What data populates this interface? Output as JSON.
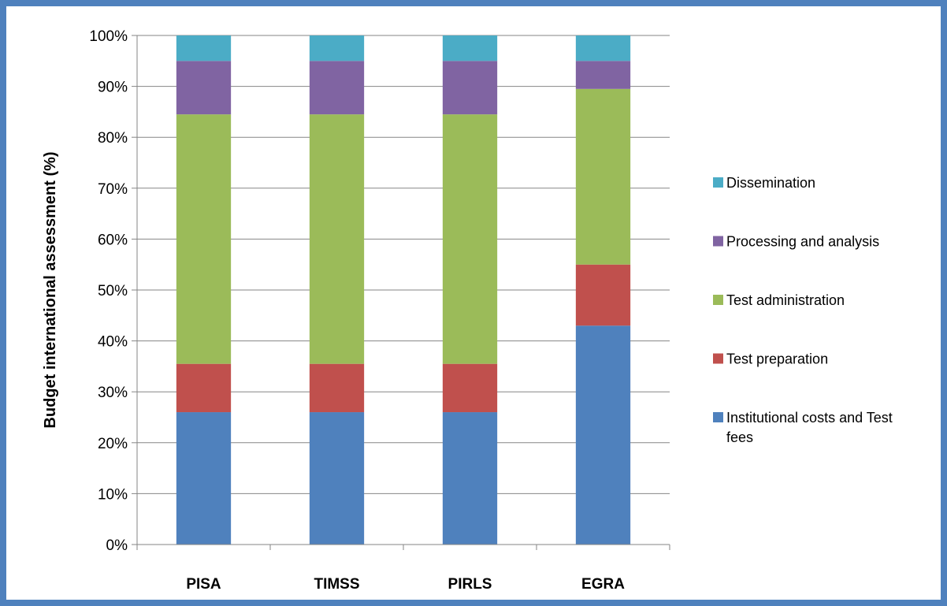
{
  "chart_data": {
    "type": "bar",
    "stacked": true,
    "percent_stacked": true,
    "title": "",
    "xlabel": "",
    "ylabel": "Budget international assessment (%)",
    "ylim": [
      0,
      100
    ],
    "yticks": [
      "0%",
      "10%",
      "20%",
      "30%",
      "40%",
      "50%",
      "60%",
      "70%",
      "80%",
      "90%",
      "100%"
    ],
    "grid": true,
    "legend_position": "right",
    "categories": [
      "PISA",
      "TIMSS",
      "PIRLS",
      "EGRA"
    ],
    "series": [
      {
        "name": "Institutional costs and Test fees",
        "name_lines": [
          "Institutional costs and Test",
          "fees"
        ],
        "color": "#4f81bd",
        "values": [
          26,
          26,
          26,
          43
        ]
      },
      {
        "name": "Test preparation",
        "name_lines": [
          "Test preparation"
        ],
        "color": "#c0504d",
        "values": [
          9.5,
          9.5,
          9.5,
          12
        ]
      },
      {
        "name": "Test administration",
        "name_lines": [
          "Test administration"
        ],
        "color": "#9bbb59",
        "values": [
          49,
          49,
          49,
          34.5
        ]
      },
      {
        "name": "Processing and analysis",
        "name_lines": [
          "Processing and analysis"
        ],
        "color": "#8064a2",
        "values": [
          10.5,
          10.5,
          10.5,
          5.5
        ]
      },
      {
        "name": "Dissemination",
        "name_lines": [
          "Dissemination"
        ],
        "color": "#4bacc6",
        "values": [
          5,
          5,
          5,
          5
        ]
      }
    ]
  }
}
